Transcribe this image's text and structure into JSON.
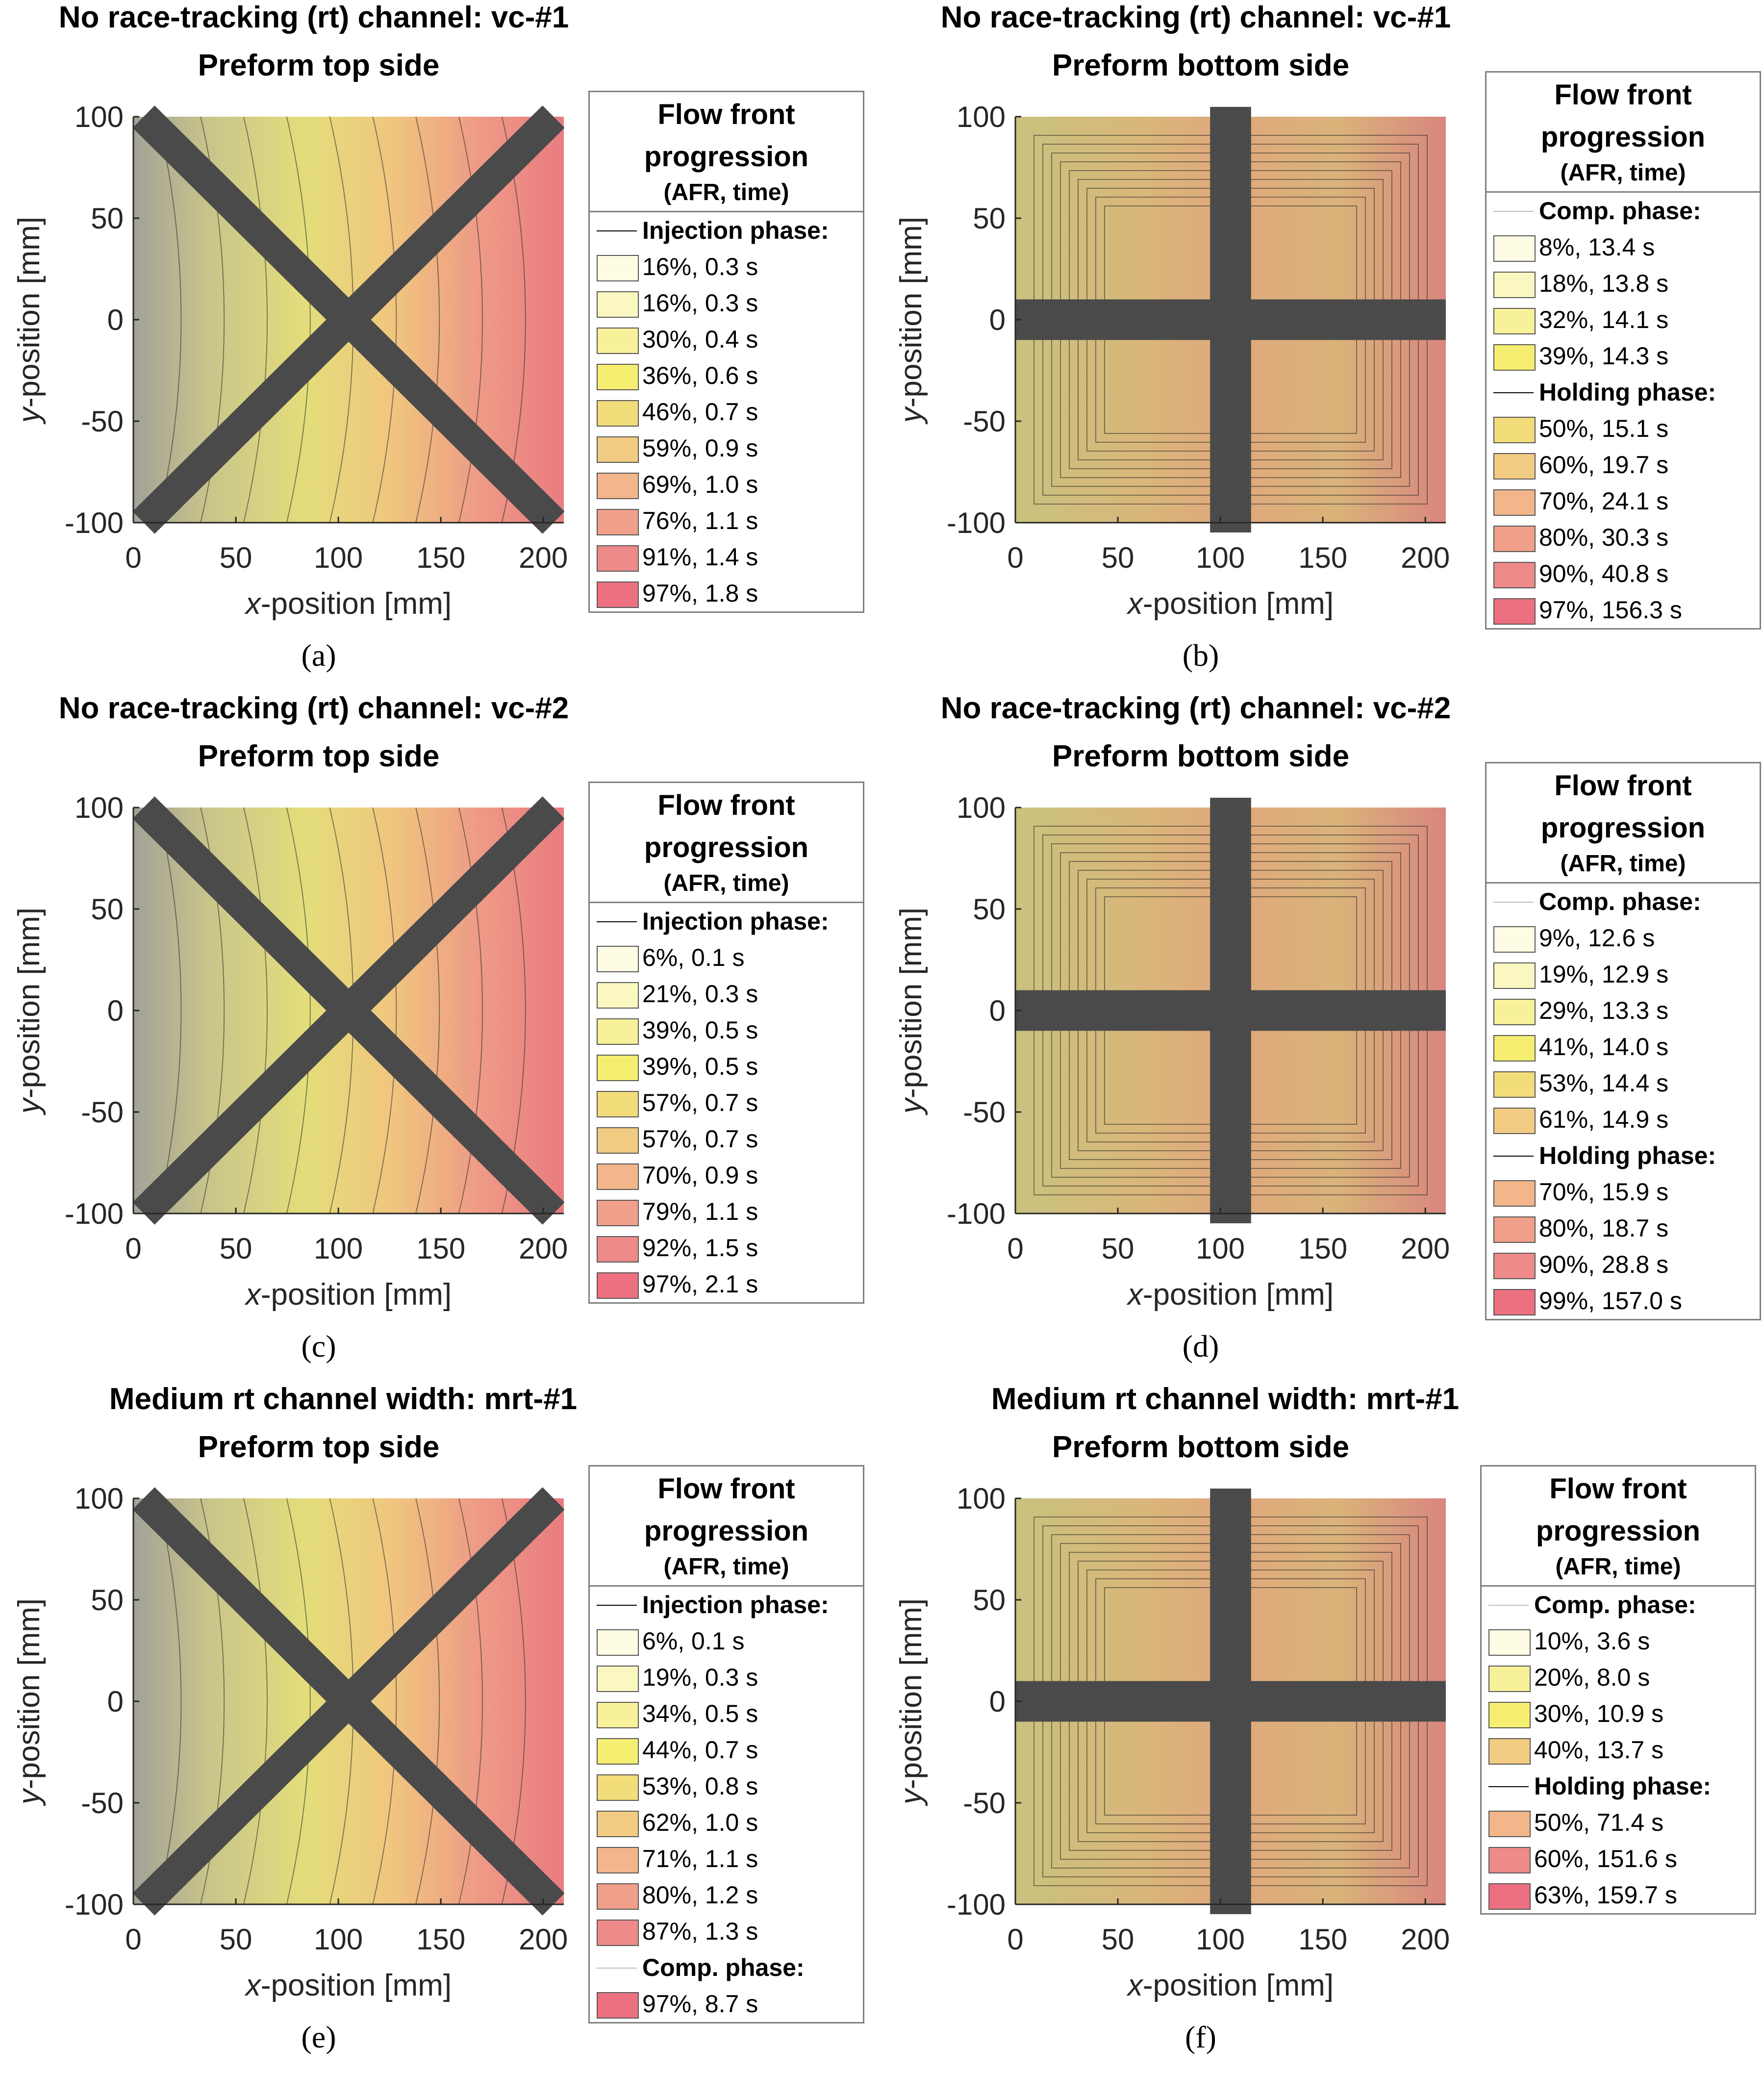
{
  "colors": {
    "ink": "#000000",
    "bar": "#4a4a4a",
    "frame": "#7f7f7f",
    "base": "#9e9e96",
    "ramp": [
      "#fefde4",
      "#fbf7c1",
      "#f7f19a",
      "#f6ee70",
      "#f3dc7a",
      "#f2cb82",
      "#f2b68a",
      "#f0a08a",
      "#ee8a8a",
      "#ec7080"
    ]
  },
  "panels": [
    {
      "suptitle": "No race-tracking (rt) channel: vc-#1",
      "subtitle": "Preform top side",
      "caption": "(a)",
      "axes": {
        "xlabel_italic": "x",
        "xlabel_rest": "-position [mm]",
        "ylabel_italic": "y",
        "ylabel_rest": "-position [mm]",
        "xticks": [
          "0",
          "50",
          "100",
          "150",
          "200"
        ],
        "yticks": [
          "100",
          "50",
          "0",
          "-50",
          "-100"
        ]
      },
      "legend": {
        "title": [
          "Flow front",
          "progression"
        ],
        "subtitle": "(AFR, time)",
        "groups": [
          {
            "heading": "Injection phase:",
            "entries": [
              "16%,  0.3 s",
              "16%,  0.3 s",
              "30%,  0.4 s",
              "36%,  0.6 s",
              "46%,  0.7 s",
              "59%,  0.9 s",
              "69%,  1.0 s",
              "76%,  1.1 s",
              "91%,  1.4 s",
              "97%,  1.8 s"
            ]
          }
        ]
      }
    },
    {
      "suptitle": "No race-tracking (rt) channel: vc-#1",
      "subtitle": "Preform bottom side",
      "caption": "(b)",
      "axes": {
        "xlabel_italic": "x",
        "xlabel_rest": "-position [mm]",
        "ylabel_italic": "y",
        "ylabel_rest": "-position [mm]",
        "xticks": [
          "0",
          "50",
          "100",
          "150",
          "200"
        ],
        "yticks": [
          "100",
          "50",
          "0",
          "-50",
          "-100"
        ]
      },
      "legend": {
        "title": [
          "Flow front",
          "progression"
        ],
        "subtitle": "(AFR, time)",
        "groups": [
          {
            "heading": "Comp. phase:",
            "entries": [
              "8%,  13.4 s",
              "18%,  13.8 s",
              "32%,  14.1 s",
              "39%,  14.3 s"
            ]
          },
          {
            "heading": "Holding phase:",
            "entries": [
              "50%,  15.1 s",
              "60%,  19.7 s",
              "70%,  24.1 s",
              "80%,  30.3 s",
              "90%,  40.8 s",
              "97%,  156.3 s"
            ]
          }
        ]
      }
    },
    {
      "suptitle": "No race-tracking (rt) channel: vc-#2",
      "subtitle": "Preform top side",
      "caption": "(c)",
      "axes": {
        "xlabel_italic": "x",
        "xlabel_rest": "-position [mm]",
        "ylabel_italic": "y",
        "ylabel_rest": "-position [mm]",
        "xticks": [
          "0",
          "50",
          "100",
          "150",
          "200"
        ],
        "yticks": [
          "100",
          "50",
          "0",
          "-50",
          "-100"
        ]
      },
      "legend": {
        "title": [
          "Flow front",
          "progression"
        ],
        "subtitle": "(AFR, time)",
        "groups": [
          {
            "heading": "Injection phase:",
            "entries": [
              "6%,  0.1 s",
              "21%,  0.3 s",
              "39%,  0.5 s",
              "39%,  0.5 s",
              "57%,  0.7 s",
              "57%,  0.7 s",
              "70%,  0.9 s",
              "79%,  1.1 s",
              "92%,  1.5 s",
              "97%,  2.1 s"
            ]
          }
        ]
      }
    },
    {
      "suptitle": "No race-tracking (rt) channel: vc-#2",
      "subtitle": "Preform bottom side",
      "caption": "(d)",
      "axes": {
        "xlabel_italic": "x",
        "xlabel_rest": "-position [mm]",
        "ylabel_italic": "y",
        "ylabel_rest": "-position [mm]",
        "xticks": [
          "0",
          "50",
          "100",
          "150",
          "200"
        ],
        "yticks": [
          "100",
          "50",
          "0",
          "-50",
          "-100"
        ]
      },
      "legend": {
        "title": [
          "Flow front",
          "progression"
        ],
        "subtitle": "(AFR, time)",
        "groups": [
          {
            "heading": "Comp. phase:",
            "entries": [
              "9%,  12.6 s",
              "19%,  12.9 s",
              "29%,  13.3 s",
              "41%,  14.0 s",
              "53%,  14.4 s",
              "61%,  14.9 s"
            ]
          },
          {
            "heading": "Holding phase:",
            "entries": [
              "70%,  15.9 s",
              "80%,  18.7 s",
              "90%,  28.8 s",
              "99%,  157.0 s"
            ]
          }
        ]
      }
    },
    {
      "suptitle": "Medium rt channel width: mrt-#1",
      "subtitle": "Preform top side",
      "caption": "(e)",
      "axes": {
        "xlabel_italic": "x",
        "xlabel_rest": "-position [mm]",
        "ylabel_italic": "y",
        "ylabel_rest": "-position [mm]",
        "xticks": [
          "0",
          "50",
          "100",
          "150",
          "200"
        ],
        "yticks": [
          "100",
          "50",
          "0",
          "-50",
          "-100"
        ]
      },
      "legend": {
        "title": [
          "Flow front",
          "progression"
        ],
        "subtitle": "(AFR, time)",
        "groups": [
          {
            "heading": "Injection phase:",
            "entries": [
              "6%,  0.1 s",
              "19%,  0.3 s",
              "34%,  0.5 s",
              "44%,  0.7 s",
              "53%,  0.8 s",
              "62%,  1.0 s",
              "71%,  1.1 s",
              "80%,  1.2 s",
              "87%,  1.3 s"
            ]
          },
          {
            "heading": "Comp. phase:",
            "entries": [
              "97%,  8.7 s"
            ]
          }
        ]
      }
    },
    {
      "suptitle": "Medium rt channel width: mrt-#1",
      "subtitle": "Preform bottom side",
      "caption": "(f)",
      "axes": {
        "xlabel_italic": "x",
        "xlabel_rest": "-position [mm]",
        "ylabel_italic": "y",
        "ylabel_rest": "-position [mm]",
        "xticks": [
          "0",
          "50",
          "100",
          "150",
          "200"
        ],
        "yticks": [
          "100",
          "50",
          "0",
          "-50",
          "-100"
        ]
      },
      "legend": {
        "title": [
          "Flow front",
          "progression"
        ],
        "subtitle": "(AFR, time)",
        "groups": [
          {
            "heading": "Comp. phase:",
            "entries": [
              "10%,  3.6 s",
              "20%,  8.0 s",
              "30%,  10.9 s",
              "40%,  13.7 s"
            ]
          },
          {
            "heading": "Holding phase:",
            "entries": [
              "50%,  71.4 s",
              "60%,  151.6 s",
              "63%,  159.7 s"
            ]
          }
        ]
      }
    }
  ],
  "chart_data": [
    {
      "type": "heatmap",
      "title": "No race-tracking (rt) channel: vc-#1 — Preform top side",
      "xlabel": "x-position [mm]",
      "ylabel": "y-position [mm]",
      "xlim": [
        0,
        210
      ],
      "ylim": [
        -100,
        100
      ],
      "series": [
        {
          "name": "Injection phase",
          "values": [
            {
              "afr": 16,
              "t": 0.3
            },
            {
              "afr": 16,
              "t": 0.3
            },
            {
              "afr": 30,
              "t": 0.4
            },
            {
              "afr": 36,
              "t": 0.6
            },
            {
              "afr": 46,
              "t": 0.7
            },
            {
              "afr": 59,
              "t": 0.9
            },
            {
              "afr": 69,
              "t": 1.0
            },
            {
              "afr": 76,
              "t": 1.1
            },
            {
              "afr": 91,
              "t": 1.4
            },
            {
              "afr": 97,
              "t": 1.8
            }
          ]
        }
      ]
    },
    {
      "type": "heatmap",
      "title": "No race-tracking (rt) channel: vc-#1 — Preform bottom side",
      "xlabel": "x-position [mm]",
      "ylabel": "y-position [mm]",
      "xlim": [
        0,
        210
      ],
      "ylim": [
        -100,
        100
      ],
      "series": [
        {
          "name": "Comp. phase",
          "values": [
            {
              "afr": 8,
              "t": 13.4
            },
            {
              "afr": 18,
              "t": 13.8
            },
            {
              "afr": 32,
              "t": 14.1
            },
            {
              "afr": 39,
              "t": 14.3
            }
          ]
        },
        {
          "name": "Holding phase",
          "values": [
            {
              "afr": 50,
              "t": 15.1
            },
            {
              "afr": 60,
              "t": 19.7
            },
            {
              "afr": 70,
              "t": 24.1
            },
            {
              "afr": 80,
              "t": 30.3
            },
            {
              "afr": 90,
              "t": 40.8
            },
            {
              "afr": 97,
              "t": 156.3
            }
          ]
        }
      ]
    },
    {
      "type": "heatmap",
      "title": "No race-tracking (rt) channel: vc-#2 — Preform top side",
      "xlabel": "x-position [mm]",
      "ylabel": "y-position [mm]",
      "xlim": [
        0,
        210
      ],
      "ylim": [
        -100,
        100
      ],
      "series": [
        {
          "name": "Injection phase",
          "values": [
            {
              "afr": 6,
              "t": 0.1
            },
            {
              "afr": 21,
              "t": 0.3
            },
            {
              "afr": 39,
              "t": 0.5
            },
            {
              "afr": 39,
              "t": 0.5
            },
            {
              "afr": 57,
              "t": 0.7
            },
            {
              "afr": 57,
              "t": 0.7
            },
            {
              "afr": 70,
              "t": 0.9
            },
            {
              "afr": 79,
              "t": 1.1
            },
            {
              "afr": 92,
              "t": 1.5
            },
            {
              "afr": 97,
              "t": 2.1
            }
          ]
        }
      ]
    },
    {
      "type": "heatmap",
      "title": "No race-tracking (rt) channel: vc-#2 — Preform bottom side",
      "xlabel": "x-position [mm]",
      "ylabel": "y-position [mm]",
      "xlim": [
        0,
        210
      ],
      "ylim": [
        -100,
        100
      ],
      "series": [
        {
          "name": "Comp. phase",
          "values": [
            {
              "afr": 9,
              "t": 12.6
            },
            {
              "afr": 19,
              "t": 12.9
            },
            {
              "afr": 29,
              "t": 13.3
            },
            {
              "afr": 41,
              "t": 14.0
            },
            {
              "afr": 53,
              "t": 14.4
            },
            {
              "afr": 61,
              "t": 14.9
            }
          ]
        },
        {
          "name": "Holding phase",
          "values": [
            {
              "afr": 70,
              "t": 15.9
            },
            {
              "afr": 80,
              "t": 18.7
            },
            {
              "afr": 90,
              "t": 28.8
            },
            {
              "afr": 99,
              "t": 157.0
            }
          ]
        }
      ]
    },
    {
      "type": "heatmap",
      "title": "Medium rt channel width: mrt-#1 — Preform top side",
      "xlabel": "x-position [mm]",
      "ylabel": "y-position [mm]",
      "xlim": [
        0,
        210
      ],
      "ylim": [
        -100,
        100
      ],
      "series": [
        {
          "name": "Injection phase",
          "values": [
            {
              "afr": 6,
              "t": 0.1
            },
            {
              "afr": 19,
              "t": 0.3
            },
            {
              "afr": 34,
              "t": 0.5
            },
            {
              "afr": 44,
              "t": 0.7
            },
            {
              "afr": 53,
              "t": 0.8
            },
            {
              "afr": 62,
              "t": 1.0
            },
            {
              "afr": 71,
              "t": 1.1
            },
            {
              "afr": 80,
              "t": 1.2
            },
            {
              "afr": 87,
              "t": 1.3
            }
          ]
        },
        {
          "name": "Comp. phase",
          "values": [
            {
              "afr": 97,
              "t": 8.7
            }
          ]
        }
      ]
    },
    {
      "type": "heatmap",
      "title": "Medium rt channel width: mrt-#1 — Preform bottom side",
      "xlabel": "x-position [mm]",
      "ylabel": "y-position [mm]",
      "xlim": [
        0,
        210
      ],
      "ylim": [
        -100,
        100
      ],
      "series": [
        {
          "name": "Comp. phase",
          "values": [
            {
              "afr": 10,
              "t": 3.6
            },
            {
              "afr": 20,
              "t": 8.0
            },
            {
              "afr": 30,
              "t": 10.9
            },
            {
              "afr": 40,
              "t": 13.7
            }
          ]
        },
        {
          "name": "Holding phase",
          "values": [
            {
              "afr": 50,
              "t": 71.4
            },
            {
              "afr": 60,
              "t": 151.6
            },
            {
              "afr": 63,
              "t": 159.7
            }
          ]
        }
      ]
    }
  ]
}
